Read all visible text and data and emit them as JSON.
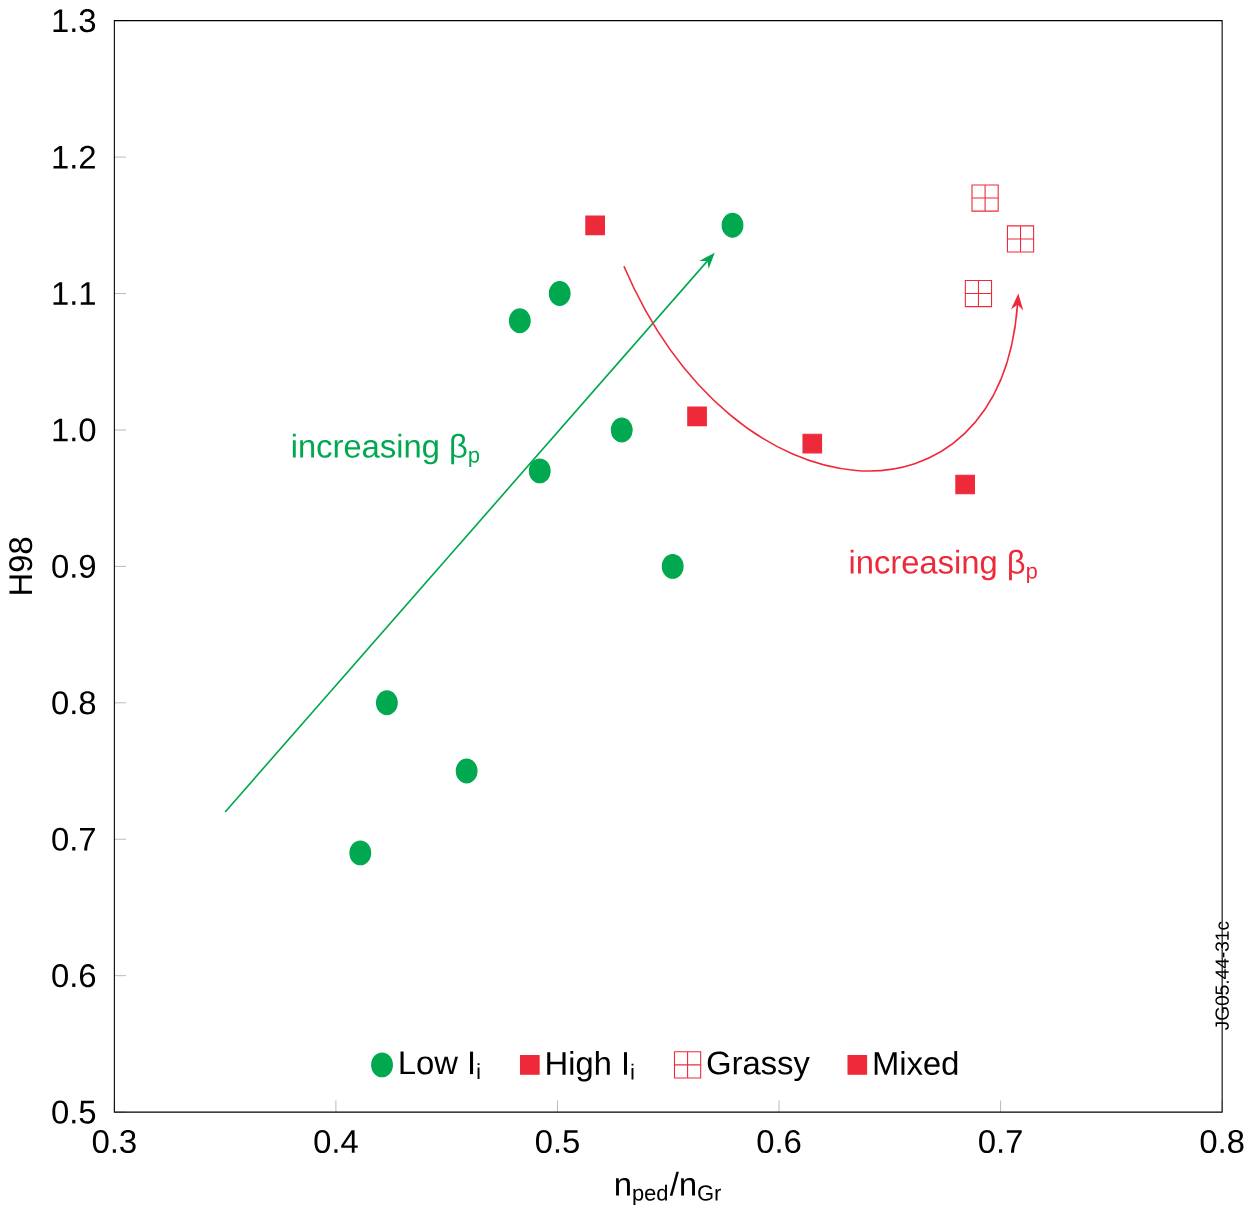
{
  "chart_data": {
    "type": "scatter",
    "xlabel": "n$_{ped}$/n$_{Gr}$",
    "ylabel": "H98",
    "xlim": [
      0.3,
      0.8
    ],
    "ylim": [
      0.5,
      1.3
    ],
    "xticks": [
      0.3,
      0.4,
      0.5,
      0.6,
      0.7,
      0.8
    ],
    "yticks": [
      0.5,
      0.6,
      0.7,
      0.8,
      0.9,
      {
        "value": 1,
        "label": "1.0"
      },
      1.1,
      1.2,
      1.3
    ],
    "grid": false,
    "legend": "bottom",
    "series": [
      {
        "name": "Low I$_{i}$",
        "color": "#00a850",
        "marker": "circle",
        "x": [
          0.411,
          0.423,
          0.459,
          0.483,
          0.501,
          0.492,
          0.529,
          0.552,
          0.579
        ],
        "values": [
          0.69,
          0.8,
          0.75,
          1.08,
          1.1,
          0.97,
          1.0,
          0.9,
          1.15
        ]
      },
      {
        "name": "High I$_{i}$",
        "color": "#ee2a3a",
        "marker": "square",
        "x": [
          0.517,
          0.563,
          0.615
        ],
        "values": [
          1.15,
          1.01,
          0.99
        ]
      },
      {
        "name": "Grassy",
        "color": "#ee2a3a",
        "marker": "cross",
        "x": [
          0.693,
          0.709,
          0.69
        ],
        "values": [
          1.17,
          1.14,
          1.1
        ]
      },
      {
        "name": "Mixed",
        "color": "#ee2a3a",
        "marker": "square",
        "x": [
          0.684
        ],
        "values": [
          0.96
        ]
      }
    ],
    "annotations": [
      "increasing β$_{p}$",
      "increasing β$_{p}$",
      "JG05.44-31c"
    ]
  }
}
